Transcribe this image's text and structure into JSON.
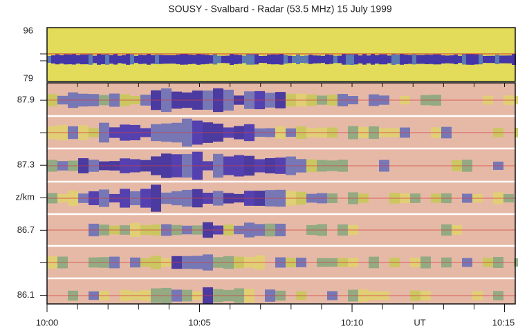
{
  "chart_data": [
    {
      "type": "radar-image",
      "title": "SOUSY - Svalbard - Radar  (53.5 MHz)  15 July 1999",
      "ylim": [
        79,
        96
      ],
      "yticks": [
        96,
        79
      ]
    },
    {
      "type": "radar-image",
      "ylim": [
        86.02,
        88.06
      ],
      "yticks": [
        87.9,
        {
          "value": 87.6,
          "label": null
        },
        87.3,
        {
          "value": 87.0,
          "label": "z/km"
        },
        86.7,
        {
          "value": 86.4,
          "label": null
        },
        86.1
      ],
      "xlim": [
        0,
        15.35
      ],
      "xticks": [
        {
          "value": 0,
          "label": "10:00"
        },
        {
          "value": 5,
          "label": "10:05"
        },
        {
          "value": 10,
          "label": "10:10"
        },
        {
          "value": 15,
          "label": "10:15"
        }
      ],
      "annotations": [
        "UT"
      ]
    }
  ]
}
